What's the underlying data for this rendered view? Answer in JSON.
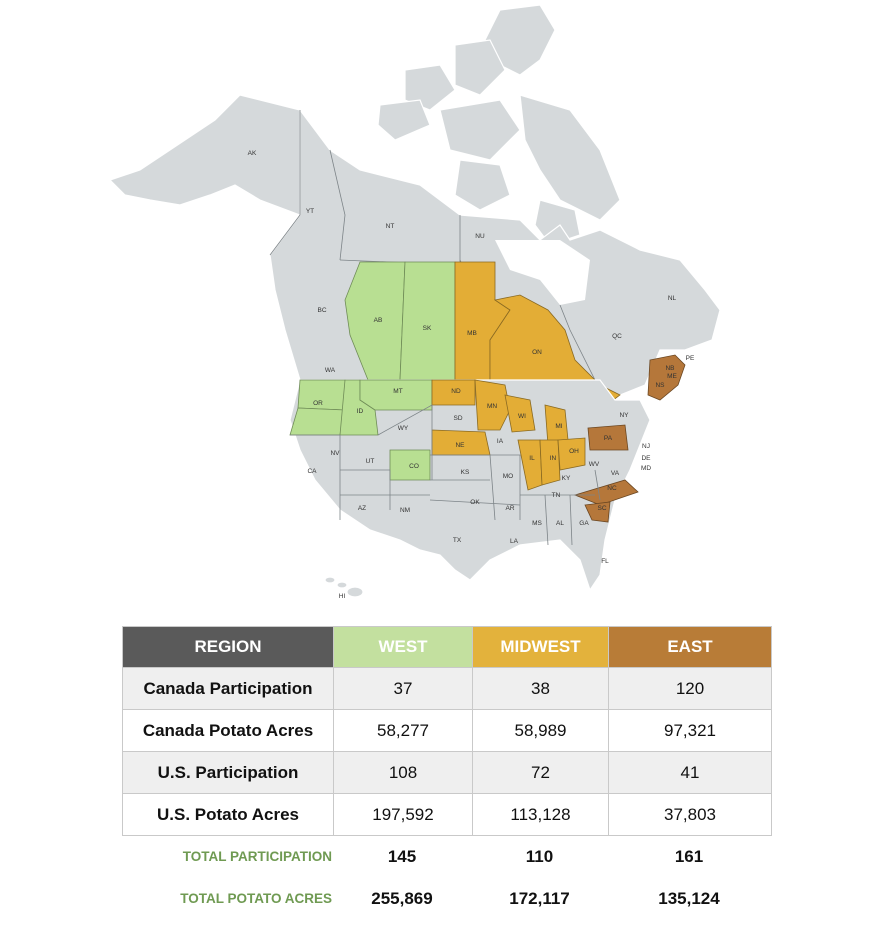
{
  "map": {
    "labels": {
      "canada": [
        "AK",
        "YT",
        "NT",
        "NU",
        "BC",
        "AB",
        "SK",
        "MB",
        "ON",
        "QC",
        "NL",
        "NB",
        "NS",
        "PE"
      ],
      "us": [
        "WA",
        "OR",
        "ID",
        "MT",
        "WY",
        "NV",
        "CA",
        "UT",
        "CO",
        "AZ",
        "NM",
        "ND",
        "SD",
        "NE",
        "KS",
        "OK",
        "TX",
        "MN",
        "IA",
        "MO",
        "AR",
        "LA",
        "WI",
        "IL",
        "MI",
        "IN",
        "OH",
        "KY",
        "TN",
        "MS",
        "AL",
        "GA",
        "FL",
        "SC",
        "NC",
        "VA",
        "WV",
        "PA",
        "NY",
        "ME",
        "NJ",
        "DE",
        "MD",
        "HI"
      ]
    },
    "regions": {
      "west": {
        "color": "#b8df92",
        "members": [
          "AB",
          "SK",
          "WA",
          "OR",
          "ID",
          "MT",
          "CO"
        ]
      },
      "midwest": {
        "color": "#e3ad36",
        "members": [
          "MB",
          "ON",
          "ND",
          "MN",
          "NE",
          "WI",
          "MI",
          "IL",
          "IN",
          "OH"
        ]
      },
      "east": {
        "color": "#b5773a",
        "members": [
          "NB",
          "NS",
          "PA",
          "NC",
          "SC"
        ]
      }
    }
  },
  "table": {
    "header": {
      "region": "REGION",
      "west": "WEST",
      "midwest": "MIDWEST",
      "east": "EAST"
    },
    "rows": [
      {
        "label": "Canada Participation",
        "west": "37",
        "midwest": "38",
        "east": "120"
      },
      {
        "label": "Canada Potato Acres",
        "west": "58,277",
        "midwest": "58,989",
        "east": "97,321"
      },
      {
        "label": "U.S. Participation",
        "west": "108",
        "midwest": "72",
        "east": "41"
      },
      {
        "label": "U.S. Potato Acres",
        "west": "197,592",
        "midwest": "113,128",
        "east": "37,803"
      }
    ],
    "totals": [
      {
        "label": "TOTAL PARTICIPATION",
        "west": "145",
        "midwest": "110",
        "east": "161"
      },
      {
        "label": "TOTAL POTATO ACRES",
        "west": "255,869",
        "midwest": "172,117",
        "east": "135,124"
      }
    ]
  }
}
